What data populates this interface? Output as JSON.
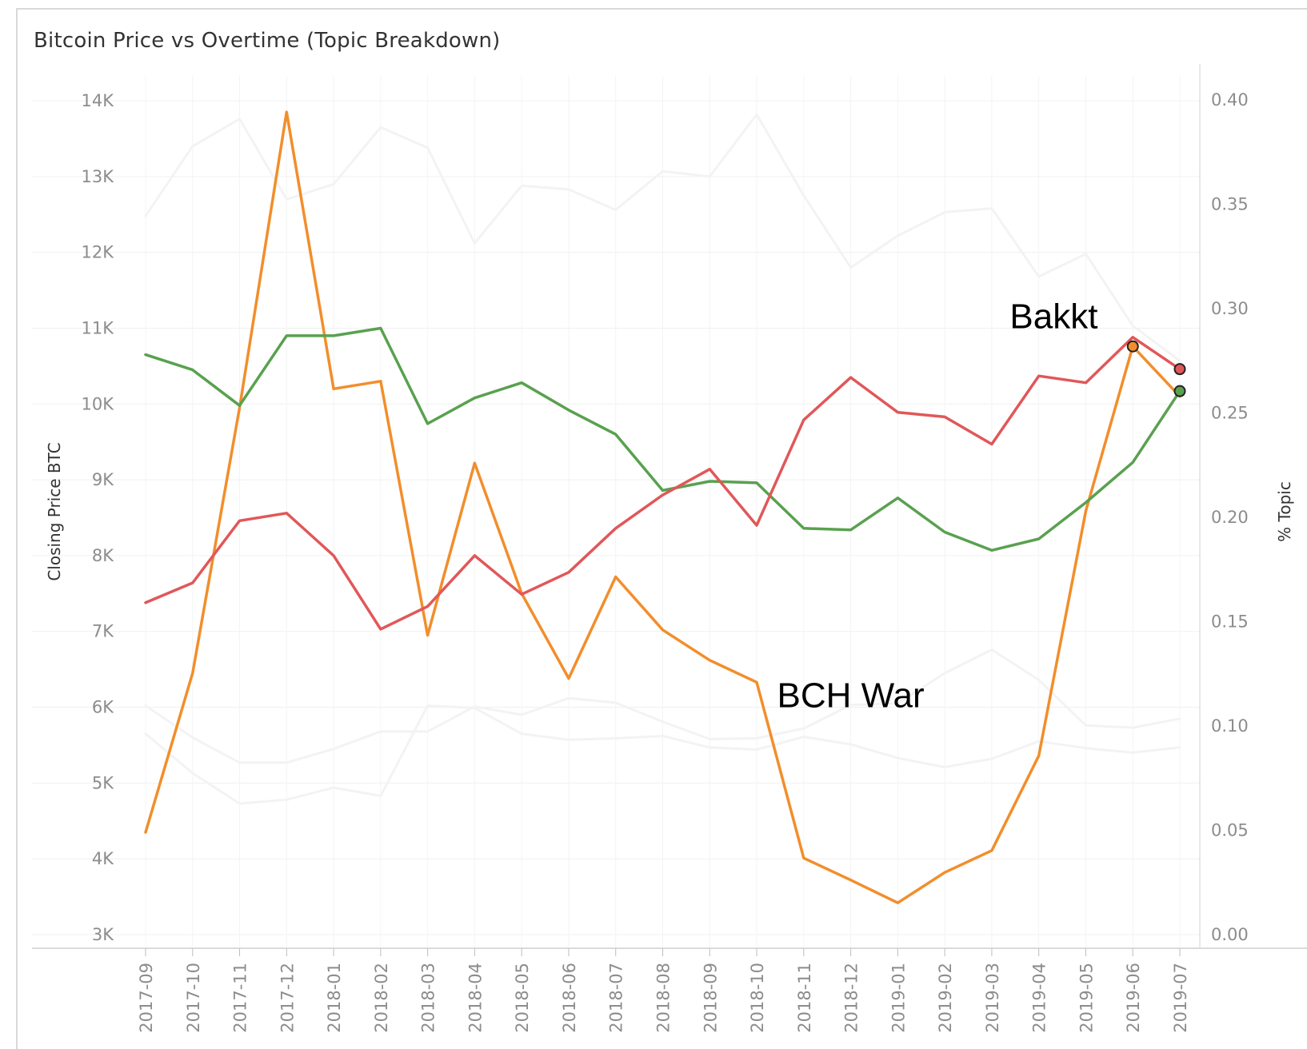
{
  "chart_data": {
    "type": "line",
    "title": "Bitcoin Price vs Overtime (Topic Breakdown)",
    "xlabel": "",
    "ylabel_left": "Closing Price BTC",
    "ylabel_right": "% Topic",
    "categories": [
      "2017-09",
      "2017-10",
      "2017-11",
      "2017-12",
      "2018-01",
      "2018-02",
      "2018-03",
      "2018-04",
      "2018-05",
      "2018-06",
      "2018-07",
      "2018-08",
      "2018-09",
      "2018-10",
      "2018-11",
      "2018-12",
      "2019-01",
      "2019-02",
      "2019-03",
      "2019-04",
      "2019-05",
      "2019-06",
      "2019-07"
    ],
    "left_axis": {
      "ylim": [
        3000,
        14500
      ],
      "ticks": [
        3000,
        4000,
        5000,
        6000,
        7000,
        8000,
        9000,
        10000,
        11000,
        12000,
        13000,
        14000
      ],
      "tick_labels": [
        "3K",
        "4K",
        "5K",
        "6K",
        "7K",
        "8K",
        "9K",
        "10K",
        "11K",
        "12K",
        "13K",
        "14K"
      ]
    },
    "right_axis": {
      "ylim": [
        0,
        0.41
      ],
      "ticks": [
        0,
        0.05,
        0.1,
        0.15,
        0.2,
        0.25,
        0.3,
        0.35,
        0.4
      ],
      "tick_labels": [
        "0.00",
        "0.05",
        "0.10",
        "0.15",
        "0.20",
        "0.25",
        "0.30",
        "0.35",
        "0.40"
      ]
    },
    "grid": true,
    "series": [
      {
        "axis": "left",
        "color": "#f28e2b",
        "values": [
          4350,
          6450,
          9950,
          13850,
          10200,
          10300,
          6950,
          9220,
          7500,
          6380,
          7720,
          7020,
          6620,
          6330,
          4010,
          3720,
          3420,
          3820,
          4110,
          5360,
          8590,
          10760,
          10100
        ]
      },
      {
        "axis": "left",
        "color": "#59a14f",
        "values": [
          10650,
          10450,
          9980,
          10900,
          10900,
          11000,
          9740,
          10080,
          10280,
          9920,
          9600,
          8860,
          8980,
          8960,
          8360,
          8340,
          8760,
          8310,
          8070,
          8220,
          8700,
          9230,
          10170
        ]
      },
      {
        "axis": "left",
        "color": "#e15759",
        "values": [
          7380,
          7640,
          8460,
          8560,
          8000,
          7030,
          7330,
          8000,
          7490,
          7780,
          8360,
          8800,
          9140,
          8400,
          9790,
          10350,
          9890,
          9830,
          9470,
          10370,
          10280,
          10880,
          10460
        ]
      },
      {
        "axis": "left",
        "color": "#f3f3f3",
        "values": [
          12480,
          13400,
          13760,
          12700,
          12900,
          13650,
          13380,
          12120,
          12880,
          12830,
          12560,
          13070,
          13000,
          13820,
          12750,
          11800,
          12220,
          12530,
          12580,
          11680,
          11980,
          11030,
          10570
        ]
      },
      {
        "axis": "left",
        "color": "#f3f3f3",
        "values": [
          6020,
          5600,
          5270,
          5270,
          5450,
          5680,
          5680,
          6010,
          5900,
          6120,
          6060,
          5810,
          5580,
          5590,
          5720,
          6030,
          6050,
          6450,
          6760,
          6360,
          5760,
          5730,
          5850
        ]
      },
      {
        "axis": "left",
        "color": "#f3f3f3",
        "values": [
          5650,
          5130,
          4730,
          4780,
          4940,
          4830,
          6020,
          5990,
          5650,
          5570,
          5590,
          5620,
          5470,
          5440,
          5610,
          5510,
          5330,
          5210,
          5320,
          5550,
          5460,
          5400,
          5470
        ]
      }
    ],
    "highlight_points": [
      {
        "category": "2019-06",
        "series_color": "#f28e2b",
        "value": 10760
      },
      {
        "category": "2019-07",
        "series_color": "#e15759",
        "value": 10460
      },
      {
        "category": "2019-07",
        "series_color": "#59a14f",
        "value": 10170
      }
    ],
    "annotations": [
      {
        "text": "Bakkt",
        "category": "2019-05",
        "value": 11000
      },
      {
        "text": "BCH War",
        "category": "2018-12",
        "value": 6000
      }
    ]
  }
}
